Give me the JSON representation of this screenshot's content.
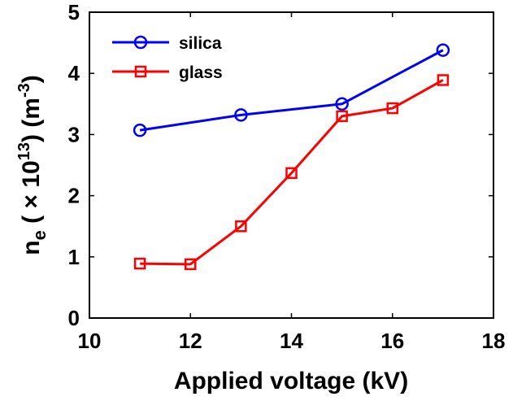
{
  "chart_data": {
    "type": "line",
    "title": "",
    "xlabel": "Applied voltage (kV)",
    "ylabel": {
      "main": "n",
      "sub": "e",
      "mid": " ( × 10",
      "exp": "13",
      "unit": ") (m",
      "unit_exp": "-3",
      "close": ")"
    },
    "xlim": [
      10,
      18
    ],
    "ylim": [
      0,
      5
    ],
    "xticks": [
      "10",
      "12",
      "14",
      "16",
      "18"
    ],
    "yticks": [
      "0",
      "1",
      "2",
      "3",
      "4",
      "5"
    ],
    "grid": false,
    "legend_position": "top-left",
    "series": [
      {
        "name": "silica",
        "color": "#0000ff",
        "marker": "circle",
        "x": [
          11,
          13,
          15,
          17
        ],
        "y": [
          3.07,
          3.32,
          3.5,
          4.38
        ]
      },
      {
        "name": "glass",
        "color": "#ff0000",
        "marker": "square",
        "x": [
          11,
          12,
          13,
          14,
          15,
          16,
          17
        ],
        "y": [
          0.89,
          0.88,
          1.5,
          2.37,
          3.3,
          3.43,
          3.89
        ]
      }
    ]
  }
}
